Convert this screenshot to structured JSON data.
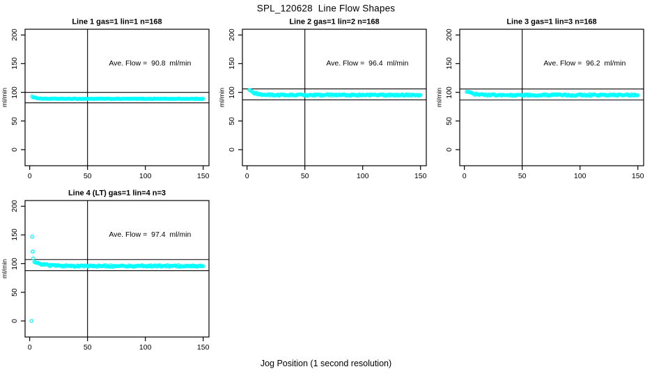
{
  "title": "SPL_120628  Line Flow Shapes",
  "xlabel": "Jog Position (1 second resolution)",
  "colors": {
    "points": "#00ffff",
    "axis": "#000000",
    "background": "#ffffff"
  },
  "chart_data": [
    {
      "type": "scatter",
      "title": "Line 1 gas=1 lin=1 n=168",
      "ylabel": "ml/min",
      "ave_flow": 90.8,
      "ave_flow_label": "Ave. Flow =  90.8  ml/min",
      "n": 168,
      "row": 0,
      "col": 0,
      "xlim": [
        -4,
        155
      ],
      "ylim": [
        -28,
        210
      ],
      "x_ticks": [
        0,
        50,
        100,
        150
      ],
      "y_ticks": [
        0,
        50,
        100,
        150,
        200
      ],
      "vline_x": 50,
      "ref_lines": [
        99.9,
        81.7
      ],
      "band": {
        "x_start": 3,
        "x_end": 150,
        "n": 168,
        "start_value": 91.5,
        "settle_value": 88.7,
        "decay": 4,
        "noise": 0.5
      },
      "head_points": [
        [
          2,
          93
        ]
      ],
      "annotation_pos": [
        104,
        151
      ]
    },
    {
      "type": "scatter",
      "title": "Line 2 gas=1 lin=2 n=168",
      "ylabel": "ml/min",
      "ave_flow": 96.4,
      "ave_flow_label": "Ave. Flow =  96.4  ml/min",
      "n": 168,
      "row": 0,
      "col": 1,
      "xlim": [
        -4,
        155
      ],
      "ylim": [
        -28,
        210
      ],
      "x_ticks": [
        0,
        50,
        100,
        150
      ],
      "y_ticks": [
        0,
        50,
        100,
        150,
        200
      ],
      "vline_x": 50,
      "ref_lines": [
        106.0,
        86.8
      ],
      "band": {
        "x_start": 3,
        "x_end": 150,
        "n": 168,
        "start_value": 102,
        "settle_value": 95.3,
        "decay": 5,
        "noise": 1.4
      },
      "head_points": [
        [
          2,
          104
        ]
      ],
      "annotation_pos": [
        104,
        151
      ]
    },
    {
      "type": "scatter",
      "title": "Line 3 gas=1 lin=3 n=168",
      "ylabel": "ml/min",
      "ave_flow": 96.2,
      "ave_flow_label": "Ave. Flow =  96.2  ml/min",
      "n": 168,
      "row": 0,
      "col": 2,
      "xlim": [
        -4,
        155
      ],
      "ylim": [
        -28,
        210
      ],
      "x_ticks": [
        0,
        50,
        100,
        150
      ],
      "y_ticks": [
        0,
        50,
        100,
        150,
        200
      ],
      "vline_x": 50,
      "ref_lines": [
        105.8,
        86.6
      ],
      "band": {
        "x_start": 3,
        "x_end": 150,
        "n": 168,
        "start_value": 101,
        "settle_value": 95.2,
        "decay": 5,
        "noise": 1.4
      },
      "head_points": [
        [
          2,
          101
        ]
      ],
      "annotation_pos": [
        104,
        151
      ]
    },
    {
      "type": "scatter",
      "title": "Line 4 (LT) gas=1 lin=4 n=3",
      "ylabel": "ml/min",
      "ave_flow": 97.4,
      "ave_flow_label": "Ave. Flow =  97.4  ml/min",
      "n": 3,
      "row": 1,
      "col": 0,
      "xlim": [
        -4,
        155
      ],
      "ylim": [
        -28,
        210
      ],
      "x_ticks": [
        0,
        50,
        100,
        150
      ],
      "y_ticks": [
        0,
        50,
        100,
        150,
        200
      ],
      "vline_x": 50,
      "ref_lines": [
        107.1,
        87.7
      ],
      "band": {
        "x_start": 4,
        "x_end": 150,
        "n": 165,
        "start_value": 104,
        "settle_value": 95.8,
        "decay": 7,
        "noise": 1.4
      },
      "head_points": [
        [
          1.5,
          0
        ],
        [
          2,
          147
        ],
        [
          2.5,
          121
        ],
        [
          3,
          109
        ]
      ],
      "annotation_pos": [
        104,
        151
      ]
    }
  ]
}
